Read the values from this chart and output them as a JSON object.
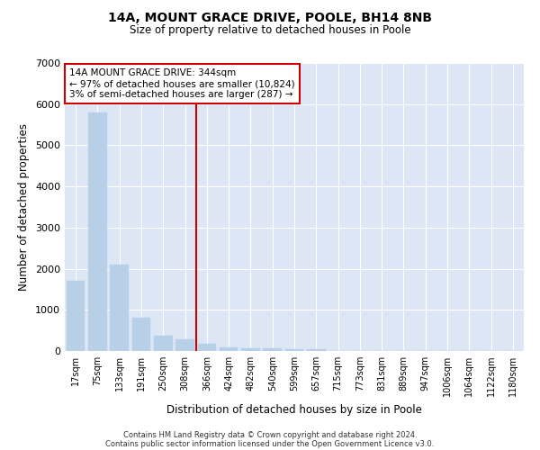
{
  "title_line1": "14A, MOUNT GRACE DRIVE, POOLE, BH14 8NB",
  "title_line2": "Size of property relative to detached houses in Poole",
  "xlabel": "Distribution of detached houses by size in Poole",
  "ylabel": "Number of detached properties",
  "bar_color": "#b8cfe8",
  "bar_edge_color": "#b8cfe8",
  "background_color": "#dce6f5",
  "grid_color": "#ffffff",
  "annotation_line_color": "#cc0000",
  "annotation_text": "14A MOUNT GRACE DRIVE: 344sqm\n← 97% of detached houses are smaller (10,824)\n3% of semi-detached houses are larger (287) →",
  "vline_x_index": 5.5,
  "categories": [
    "17sqm",
    "75sqm",
    "133sqm",
    "191sqm",
    "250sqm",
    "308sqm",
    "366sqm",
    "424sqm",
    "482sqm",
    "540sqm",
    "599sqm",
    "657sqm",
    "715sqm",
    "773sqm",
    "831sqm",
    "889sqm",
    "947sqm",
    "1006sqm",
    "1064sqm",
    "1122sqm",
    "1180sqm"
  ],
  "values": [
    1700,
    5800,
    2100,
    800,
    370,
    290,
    175,
    90,
    75,
    55,
    50,
    45,
    5,
    0,
    0,
    0,
    0,
    0,
    0,
    0,
    0
  ],
  "ylim": [
    0,
    7000
  ],
  "yticks": [
    0,
    1000,
    2000,
    3000,
    4000,
    5000,
    6000,
    7000
  ],
  "footnote1": "Contains HM Land Registry data © Crown copyright and database right 2024.",
  "footnote2": "Contains public sector information licensed under the Open Government Licence v3.0."
}
